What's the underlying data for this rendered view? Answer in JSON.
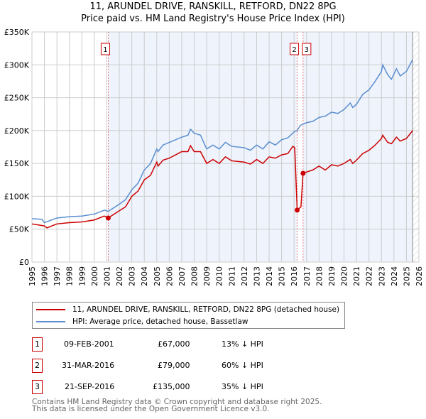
{
  "chart_data": {
    "type": "line",
    "title": "11, ARUNDEL DRIVE, RANSKILL, RETFORD, DN22 8PG",
    "subtitle": "Price paid vs. HM Land Registry's House Price Index (HPI)",
    "xlim": [
      1995,
      2026
    ],
    "ylim": [
      0,
      350000
    ],
    "x_ticks": [
      "1995",
      "1996",
      "1997",
      "1998",
      "1999",
      "2000",
      "2001",
      "2002",
      "2003",
      "2004",
      "2005",
      "2006",
      "2007",
      "2008",
      "2009",
      "2010",
      "2011",
      "2012",
      "2013",
      "2014",
      "2015",
      "2016",
      "2017",
      "2018",
      "2019",
      "2020",
      "2021",
      "2022",
      "2023",
      "2024",
      "2025",
      "2026"
    ],
    "y_ticks": [
      {
        "v": 0,
        "label": "£0"
      },
      {
        "v": 50000,
        "label": "£50K"
      },
      {
        "v": 100000,
        "label": "£100K"
      },
      {
        "v": 150000,
        "label": "£150K"
      },
      {
        "v": 200000,
        "label": "£200K"
      },
      {
        "v": 250000,
        "label": "£250K"
      },
      {
        "v": 300000,
        "label": "£300K"
      },
      {
        "v": 350000,
        "label": "£350K"
      }
    ],
    "grid": true,
    "forecast_from": 2025.5,
    "series": [
      {
        "name": "11, ARUNDEL DRIVE, RANSKILL, RETFORD, DN22 8PG (detached house)",
        "color": "#cc0000",
        "x": [
          1995,
          1996,
          1996.2,
          1997,
          1998,
          1999,
          2000,
          2000.8,
          2001.1,
          2002,
          2002.5,
          2003,
          2003.5,
          2004,
          2004.5,
          2005,
          2005.1,
          2005.5,
          2006,
          2007,
          2007.5,
          2007.7,
          2008,
          2008.5,
          2009,
          2009.5,
          2010,
          2010.5,
          2011,
          2012,
          2012.5,
          2013,
          2013.5,
          2014,
          2014.5,
          2015,
          2015.5,
          2015.9,
          2016.05,
          2016.25,
          2016.55,
          2016.72,
          2017,
          2017.5,
          2018,
          2018.5,
          2019,
          2019.5,
          2020,
          2020.5,
          2020.7,
          2021,
          2021.5,
          2022,
          2022.5,
          2023,
          2023.1,
          2023.5,
          2023.8,
          2024.2,
          2024.5,
          2025,
          2025.5
        ],
        "y": [
          58,
          55,
          52,
          58,
          60,
          61,
          64,
          70,
          67,
          78,
          84,
          100,
          108,
          125,
          132,
          152,
          146,
          155,
          158,
          168,
          168,
          177,
          168,
          168,
          150,
          156,
          150,
          160,
          154,
          152,
          149,
          156,
          150,
          160,
          158,
          163,
          165,
          176,
          174,
          79,
          84,
          135,
          137,
          140,
          146,
          140,
          148,
          146,
          150,
          156,
          150,
          155,
          165,
          170,
          178,
          188,
          193,
          182,
          180,
          190,
          184,
          188,
          200
        ]
      },
      {
        "name": "HPI: Average price, detached house, Bassetlaw",
        "color": "#5b8fd0",
        "x": [
          1995,
          1995.8,
          1996,
          1997,
          1998,
          1999,
          2000,
          2000.8,
          2001.1,
          2002,
          2002.5,
          2003,
          2003.5,
          2004,
          2004.5,
          2005,
          2005.1,
          2005.5,
          2006,
          2007,
          2007.5,
          2007.7,
          2008,
          2008.5,
          2009,
          2009.5,
          2010,
          2010.5,
          2011,
          2012,
          2012.5,
          2013,
          2013.5,
          2014,
          2014.5,
          2015,
          2015.5,
          2016,
          2016.25,
          2016.5,
          2017,
          2017.5,
          2018,
          2018.5,
          2019,
          2019.5,
          2020,
          2020.5,
          2020.7,
          2021,
          2021.5,
          2022,
          2022.5,
          2023,
          2023.1,
          2023.5,
          2023.8,
          2024.2,
          2024.5,
          2025,
          2025.5
        ],
        "y": [
          66,
          65,
          60,
          67,
          69,
          70,
          73,
          79,
          77,
          88,
          95,
          110,
          120,
          140,
          150,
          172,
          168,
          178,
          182,
          190,
          193,
          202,
          196,
          193,
          172,
          178,
          172,
          182,
          176,
          174,
          170,
          178,
          172,
          183,
          178,
          186,
          189,
          198,
          200,
          208,
          212,
          214,
          220,
          222,
          228,
          226,
          232,
          242,
          235,
          240,
          255,
          262,
          275,
          290,
          300,
          285,
          278,
          294,
          283,
          290,
          308
        ]
      }
    ],
    "sales": [
      {
        "id": "1",
        "x": 2001.11,
        "price": 67000
      },
      {
        "id": "2",
        "x": 2016.25,
        "price": 79000
      },
      {
        "id": "3",
        "x": 2016.72,
        "price": 135000
      }
    ]
  },
  "legend": {
    "red": "11, ARUNDEL DRIVE, RANSKILL, RETFORD, DN22 8PG (detached house)",
    "blue": "HPI: Average price, detached house, Bassetlaw"
  },
  "transactions": [
    {
      "num": "1",
      "date": "09-FEB-2001",
      "price": "£67,000",
      "hpi": "13% ↓ HPI"
    },
    {
      "num": "2",
      "date": "31-MAR-2016",
      "price": "£79,000",
      "hpi": "60% ↓ HPI"
    },
    {
      "num": "3",
      "date": "21-SEP-2016",
      "price": "£135,000",
      "hpi": "35% ↓ HPI"
    }
  ],
  "footer": {
    "line1": "Contains HM Land Registry data © Crown copyright and database right 2025.",
    "line2": "This data is licensed under the Open Government Licence v3.0."
  }
}
